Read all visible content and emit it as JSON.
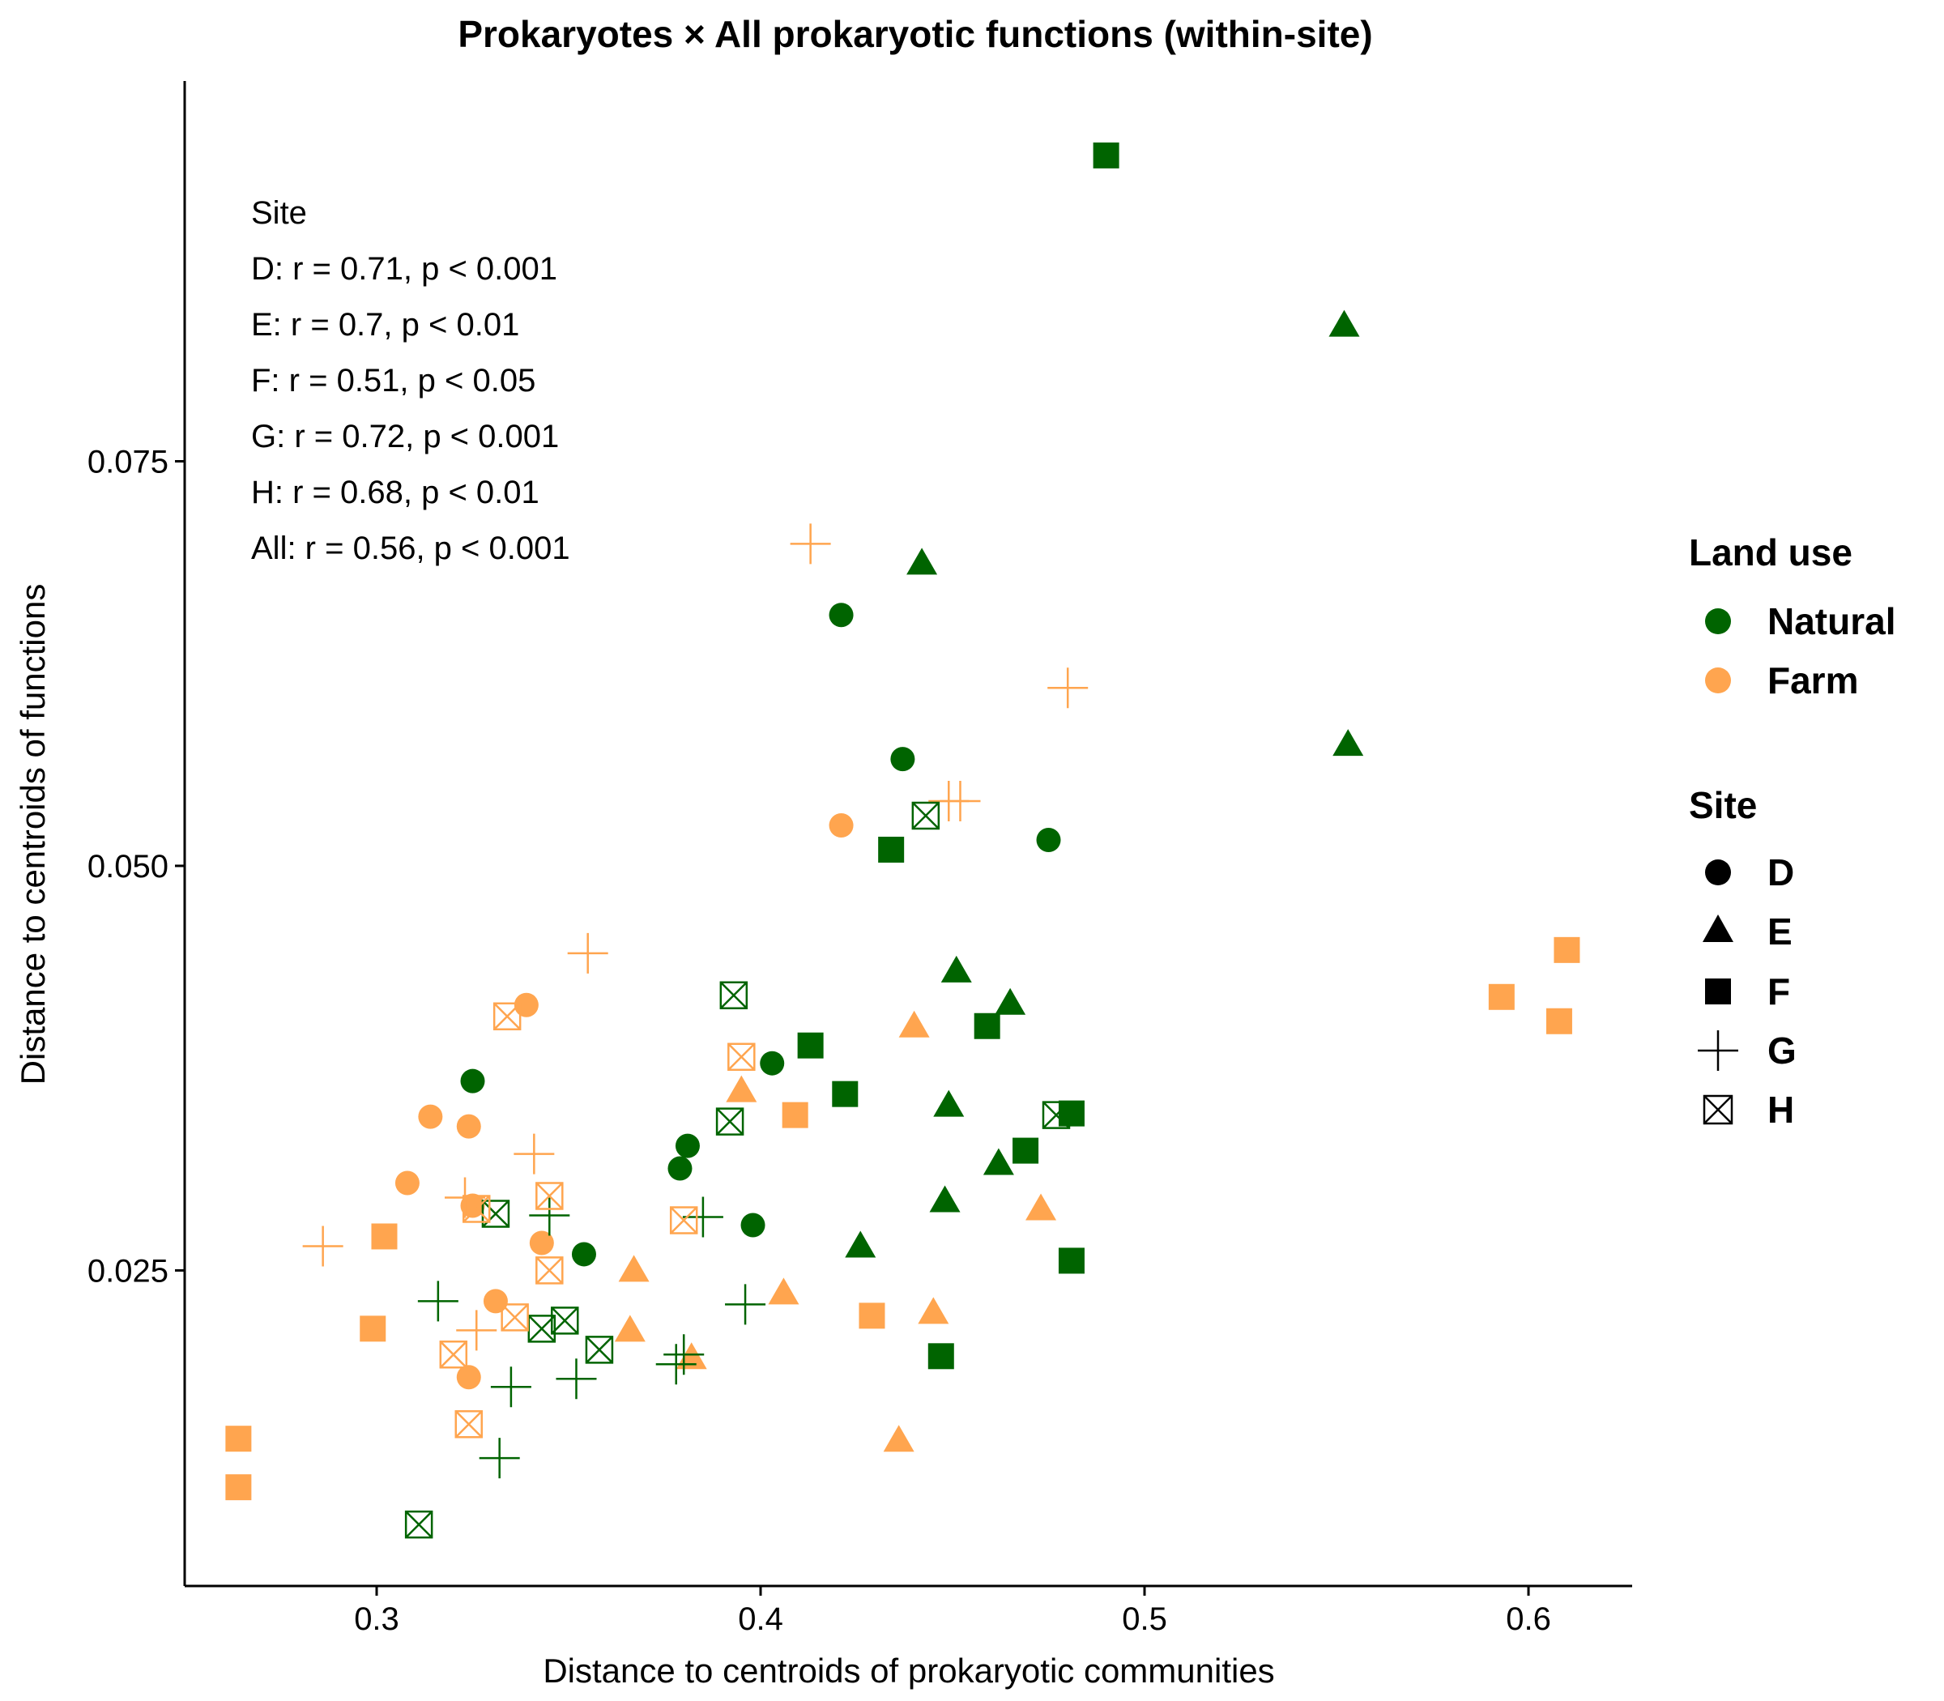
{
  "chart_data": {
    "type": "scatter",
    "title": "Prokaryotes × All prokaryotic functions (within-site)",
    "xlabel": "Distance to centroids of prokaryotic communities",
    "ylabel": "Distance to centroids of functions",
    "xlim": [
      0.25,
      0.627
    ],
    "ylim": [
      0.0055,
      0.0985
    ],
    "x_ticks": [
      0.3,
      0.4,
      0.5,
      0.6
    ],
    "x_tick_labels": [
      "0.3",
      "0.4",
      "0.5",
      "0.6"
    ],
    "y_ticks": [
      0.025,
      0.05,
      0.075
    ],
    "y_tick_labels": [
      "0.025",
      "0.050",
      "0.075"
    ],
    "grid": false,
    "colors": {
      "Natural": "#006400",
      "Farm": "#FFA54F"
    },
    "annotation": {
      "heading": "Site",
      "lines": [
        "D: r = 0.71, p < 0.001",
        "E: r = 0.7, p < 0.01",
        "F: r = 0.51, p < 0.05",
        "G: r = 0.72, p < 0.001",
        "H: r = 0.68, p < 0.01",
        "All: r = 0.56, p < 0.001"
      ]
    },
    "legend": {
      "placement": "right",
      "land_use": {
        "title": "Land use",
        "items": [
          "Natural",
          "Farm"
        ]
      },
      "site": {
        "title": "Site",
        "items": [
          "D",
          "E",
          "F",
          "G",
          "H"
        ]
      }
    },
    "series": [
      {
        "site": "D",
        "land_use": "Natural",
        "points": [
          [
            0.325,
            0.0367
          ],
          [
            0.354,
            0.026
          ],
          [
            0.379,
            0.0313
          ],
          [
            0.381,
            0.0327
          ],
          [
            0.398,
            0.0278
          ],
          [
            0.403,
            0.0378
          ],
          [
            0.421,
            0.0655
          ],
          [
            0.437,
            0.0566
          ],
          [
            0.475,
            0.0516
          ]
        ]
      },
      {
        "site": "D",
        "land_use": "Farm",
        "points": [
          [
            0.308,
            0.0304
          ],
          [
            0.314,
            0.0345
          ],
          [
            0.324,
            0.0339
          ],
          [
            0.325,
            0.029
          ],
          [
            0.331,
            0.0231
          ],
          [
            0.339,
            0.0414
          ],
          [
            0.343,
            0.0267
          ],
          [
            0.324,
            0.0184
          ],
          [
            0.421,
            0.0525
          ]
        ]
      },
      {
        "site": "E",
        "land_use": "Natural",
        "points": [
          [
            0.426,
            0.0265
          ],
          [
            0.442,
            0.0687
          ],
          [
            0.448,
            0.0293
          ],
          [
            0.449,
            0.0352
          ],
          [
            0.451,
            0.0435
          ],
          [
            0.462,
            0.0316
          ],
          [
            0.465,
            0.0415
          ],
          [
            0.552,
            0.0834
          ],
          [
            0.553,
            0.0575
          ]
        ]
      },
      {
        "site": "E",
        "land_use": "Farm",
        "points": [
          [
            0.366,
            0.0213
          ],
          [
            0.367,
            0.025
          ],
          [
            0.382,
            0.0196
          ],
          [
            0.395,
            0.0361
          ],
          [
            0.406,
            0.0236
          ],
          [
            0.436,
            0.0145
          ],
          [
            0.44,
            0.0401
          ],
          [
            0.445,
            0.0224
          ],
          [
            0.473,
            0.0288
          ]
        ]
      },
      {
        "site": "F",
        "land_use": "Natural",
        "points": [
          [
            0.413,
            0.0389
          ],
          [
            0.422,
            0.0359
          ],
          [
            0.434,
            0.051
          ],
          [
            0.447,
            0.0197
          ],
          [
            0.459,
            0.0401
          ],
          [
            0.469,
            0.0324
          ],
          [
            0.481,
            0.0347
          ],
          [
            0.481,
            0.0256
          ],
          [
            0.49,
            0.0939
          ]
        ]
      },
      {
        "site": "F",
        "land_use": "Farm",
        "points": [
          [
            0.264,
            0.0146
          ],
          [
            0.264,
            0.0116
          ],
          [
            0.299,
            0.0214
          ],
          [
            0.302,
            0.0271
          ],
          [
            0.409,
            0.0346
          ],
          [
            0.429,
            0.0222
          ],
          [
            0.593,
            0.0419
          ],
          [
            0.608,
            0.0404
          ],
          [
            0.61,
            0.0448
          ]
        ]
      },
      {
        "site": "G",
        "land_use": "Natural",
        "points": [
          [
            0.316,
            0.0231
          ],
          [
            0.332,
            0.0134
          ],
          [
            0.335,
            0.0178
          ],
          [
            0.345,
            0.0284
          ],
          [
            0.352,
            0.0183
          ],
          [
            0.378,
            0.0192
          ],
          [
            0.38,
            0.0198
          ],
          [
            0.385,
            0.0283
          ],
          [
            0.396,
            0.0229
          ]
        ]
      },
      {
        "site": "G",
        "land_use": "Farm",
        "points": [
          [
            0.286,
            0.0265
          ],
          [
            0.323,
            0.0295
          ],
          [
            0.326,
            0.0213
          ],
          [
            0.341,
            0.0322
          ],
          [
            0.355,
            0.0446
          ],
          [
            0.413,
            0.0699
          ],
          [
            0.449,
            0.054
          ],
          [
            0.452,
            0.054
          ],
          [
            0.48,
            0.061
          ]
        ]
      },
      {
        "site": "H",
        "land_use": "Natural",
        "points": [
          [
            0.311,
            0.0093
          ],
          [
            0.331,
            0.0285
          ],
          [
            0.343,
            0.0214
          ],
          [
            0.349,
            0.0219
          ],
          [
            0.358,
            0.0201
          ],
          [
            0.392,
            0.0342
          ],
          [
            0.393,
            0.042
          ],
          [
            0.443,
            0.0531
          ],
          [
            0.477,
            0.0346
          ]
        ]
      },
      {
        "site": "H",
        "land_use": "Farm",
        "points": [
          [
            0.32,
            0.0198
          ],
          [
            0.324,
            0.0155
          ],
          [
            0.326,
            0.0288
          ],
          [
            0.334,
            0.0407
          ],
          [
            0.336,
            0.0221
          ],
          [
            0.345,
            0.025
          ],
          [
            0.345,
            0.0296
          ],
          [
            0.38,
            0.0281
          ],
          [
            0.395,
            0.0382
          ]
        ]
      }
    ]
  }
}
